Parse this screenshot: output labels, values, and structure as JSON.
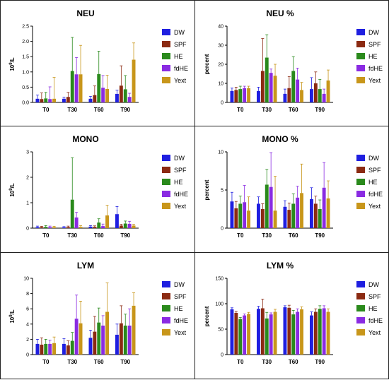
{
  "chart_data": [
    {
      "type": "bar",
      "title": "NEU",
      "ylabel": "10^9/L",
      "ylim": [
        0,
        2.5
      ],
      "yticks": [
        "0.0",
        "0.5",
        "1.0",
        "1.5",
        "2.0",
        "2.5"
      ],
      "categories": [
        "T0",
        "T30",
        "T60",
        "T90"
      ],
      "series": [
        {
          "name": "DW",
          "color": "#1f1fe0",
          "values": [
            0.12,
            0.12,
            0.12,
            0.28
          ],
          "errors": [
            0.12,
            0.05,
            0.08,
            0.12
          ]
        },
        {
          "name": "SPF",
          "color": "#8b2a12",
          "values": [
            0.11,
            0.18,
            0.24,
            0.55
          ],
          "errors": [
            0.2,
            0.15,
            0.3,
            0.65
          ]
        },
        {
          "name": "HE",
          "color": "#2a8a1c",
          "values": [
            0.13,
            1.03,
            0.93,
            0.43
          ],
          "errors": [
            0.2,
            1.1,
            0.75,
            0.45
          ]
        },
        {
          "name": "fdHE",
          "color": "#8a2be2",
          "values": [
            0.11,
            0.92,
            0.48,
            0.18
          ],
          "errors": [
            0.4,
            0.55,
            0.4,
            0.12
          ]
        },
        {
          "name": "Yext",
          "color": "#c8961a",
          "values": [
            0.12,
            0.92,
            0.44,
            1.4
          ],
          "errors": [
            0.7,
            0.95,
            0.45,
            0.55
          ]
        }
      ]
    },
    {
      "type": "bar",
      "title": "NEU %",
      "ylabel": "percent",
      "ylim": [
        0,
        40
      ],
      "yticks": [
        "0",
        "10",
        "20",
        "30",
        "40"
      ],
      "categories": [
        "T0",
        "T30",
        "T60",
        "T90"
      ],
      "series": [
        {
          "name": "DW",
          "color": "#1f1fe0",
          "values": [
            6,
            6,
            4.5,
            7
          ],
          "errors": [
            1.5,
            2,
            2.5,
            6
          ]
        },
        {
          "name": "SPF",
          "color": "#8b2a12",
          "values": [
            6.5,
            16.5,
            7.5,
            10
          ],
          "errors": [
            1.5,
            17,
            6,
            6
          ]
        },
        {
          "name": "HE",
          "color": "#2a8a1c",
          "values": [
            7,
            23.5,
            16.5,
            7
          ],
          "errors": [
            1.5,
            12,
            7.5,
            5
          ]
        },
        {
          "name": "fdHE",
          "color": "#8a2be2",
          "values": [
            7.5,
            15.5,
            12,
            4.5
          ],
          "errors": [
            1,
            2,
            6,
            2.5
          ]
        },
        {
          "name": "Yext",
          "color": "#c8961a",
          "values": [
            7.5,
            14,
            6.5,
            11.5
          ],
          "errors": [
            1,
            6,
            4,
            5.5
          ]
        }
      ]
    },
    {
      "type": "bar",
      "title": "MONO",
      "ylabel": "10^9/L",
      "ylim": [
        0,
        3
      ],
      "yticks": [
        "0",
        "1",
        "2",
        "3"
      ],
      "categories": [
        "T0",
        "T30",
        "T60",
        "T90"
      ],
      "series": [
        {
          "name": "DW",
          "color": "#1f1fe0",
          "values": [
            0.04,
            0.03,
            0.06,
            0.55
          ],
          "errors": [
            0.04,
            0.03,
            0.04,
            0.3
          ]
        },
        {
          "name": "SPF",
          "color": "#8b2a12",
          "values": [
            0.04,
            0.04,
            0.05,
            0.1
          ],
          "errors": [
            0.03,
            0.04,
            0.04,
            0.05
          ]
        },
        {
          "name": "HE",
          "color": "#2a8a1c",
          "values": [
            0.05,
            1.12,
            0.22,
            0.18
          ],
          "errors": [
            0.05,
            1.65,
            0.15,
            0.1
          ]
        },
        {
          "name": "fdHE",
          "color": "#8a2be2",
          "values": [
            0.04,
            0.42,
            0.08,
            0.17
          ],
          "errors": [
            0.04,
            0.2,
            0.08,
            0.1
          ]
        },
        {
          "name": "Yext",
          "color": "#c8961a",
          "values": [
            0.04,
            0.05,
            0.5,
            0.1
          ],
          "errors": [
            0.03,
            0.05,
            0.4,
            0.05
          ]
        }
      ]
    },
    {
      "type": "bar",
      "title": "MONO %",
      "ylabel": "percent",
      "ylim": [
        0,
        10
      ],
      "yticks": [
        "0",
        "5",
        "10"
      ],
      "categories": [
        "T0",
        "T30",
        "T60",
        "T90"
      ],
      "series": [
        {
          "name": "DW",
          "color": "#1f1fe0",
          "values": [
            3.5,
            3.2,
            2.8,
            3.8
          ],
          "errors": [
            1.2,
            0.9,
            0.8,
            1.5
          ]
        },
        {
          "name": "SPF",
          "color": "#8b2a12",
          "values": [
            2.6,
            2.5,
            2.4,
            3.2
          ],
          "errors": [
            0.9,
            0.7,
            0.9,
            1.0
          ]
        },
        {
          "name": "HE",
          "color": "#2a8a1c",
          "values": [
            3.2,
            5.7,
            3.2,
            2.5
          ],
          "errors": [
            1.0,
            2.0,
            1.3,
            1.2
          ]
        },
        {
          "name": "fdHE",
          "color": "#8a2be2",
          "values": [
            3.4,
            5.4,
            4.0,
            5.3
          ],
          "errors": [
            2.2,
            4.5,
            1.5,
            3.3
          ]
        },
        {
          "name": "Yext",
          "color": "#c8961a",
          "values": [
            2.3,
            2.3,
            4.6,
            3.9
          ],
          "errors": [
            1.8,
            4.5,
            3.8,
            2.3
          ]
        }
      ]
    },
    {
      "type": "bar",
      "title": "LYM",
      "ylabel": "10^9/L",
      "ylim": [
        0,
        10
      ],
      "yticks": [
        "0",
        "2",
        "4",
        "6",
        "8",
        "10"
      ],
      "categories": [
        "T0",
        "T30",
        "T60",
        "T90"
      ],
      "series": [
        {
          "name": "DW",
          "color": "#1f1fe0",
          "values": [
            1.4,
            1.4,
            2.2,
            2.6
          ],
          "errors": [
            0.6,
            0.7,
            1.0,
            1.4
          ]
        },
        {
          "name": "SPF",
          "color": "#8b2a12",
          "values": [
            1.3,
            1.2,
            3.0,
            4.1
          ],
          "errors": [
            0.9,
            0.6,
            2.0,
            2.3
          ]
        },
        {
          "name": "HE",
          "color": "#2a8a1c",
          "values": [
            1.4,
            1.8,
            4.2,
            3.8
          ],
          "errors": [
            0.6,
            1.1,
            1.9,
            1.5
          ]
        },
        {
          "name": "fdHE",
          "color": "#8a2be2",
          "values": [
            1.4,
            4.7,
            3.8,
            3.8
          ],
          "errors": [
            0.5,
            3.1,
            1.3,
            2.2
          ]
        },
        {
          "name": "Yext",
          "color": "#c8961a",
          "values": [
            1.5,
            4.1,
            5.6,
            6.4
          ],
          "errors": [
            0.8,
            2.9,
            3.8,
            1.7
          ]
        }
      ]
    },
    {
      "type": "bar",
      "title": "LYM %",
      "ylabel": "percent",
      "ylim": [
        0,
        150
      ],
      "yticks": [
        "0",
        "50",
        "100",
        "150"
      ],
      "categories": [
        "T0",
        "T30",
        "T60",
        "T90"
      ],
      "series": [
        {
          "name": "DW",
          "color": "#1f1fe0",
          "values": [
            89,
            90,
            93,
            77
          ],
          "errors": [
            3,
            5,
            3,
            7
          ]
        },
        {
          "name": "SPF",
          "color": "#8b2a12",
          "values": [
            82,
            91,
            92,
            84
          ],
          "errors": [
            3,
            18,
            5,
            6
          ]
        },
        {
          "name": "HE",
          "color": "#2a8a1c",
          "values": [
            70,
            71,
            79,
            90
          ],
          "errors": [
            3,
            12,
            8,
            6
          ]
        },
        {
          "name": "fdHE",
          "color": "#8a2be2",
          "values": [
            77,
            79,
            84,
            91
          ],
          "errors": [
            3,
            3,
            6,
            5
          ]
        },
        {
          "name": "Yext",
          "color": "#c8961a",
          "values": [
            80,
            84,
            89,
            84
          ],
          "errors": [
            3,
            5,
            5,
            6
          ]
        }
      ]
    }
  ]
}
